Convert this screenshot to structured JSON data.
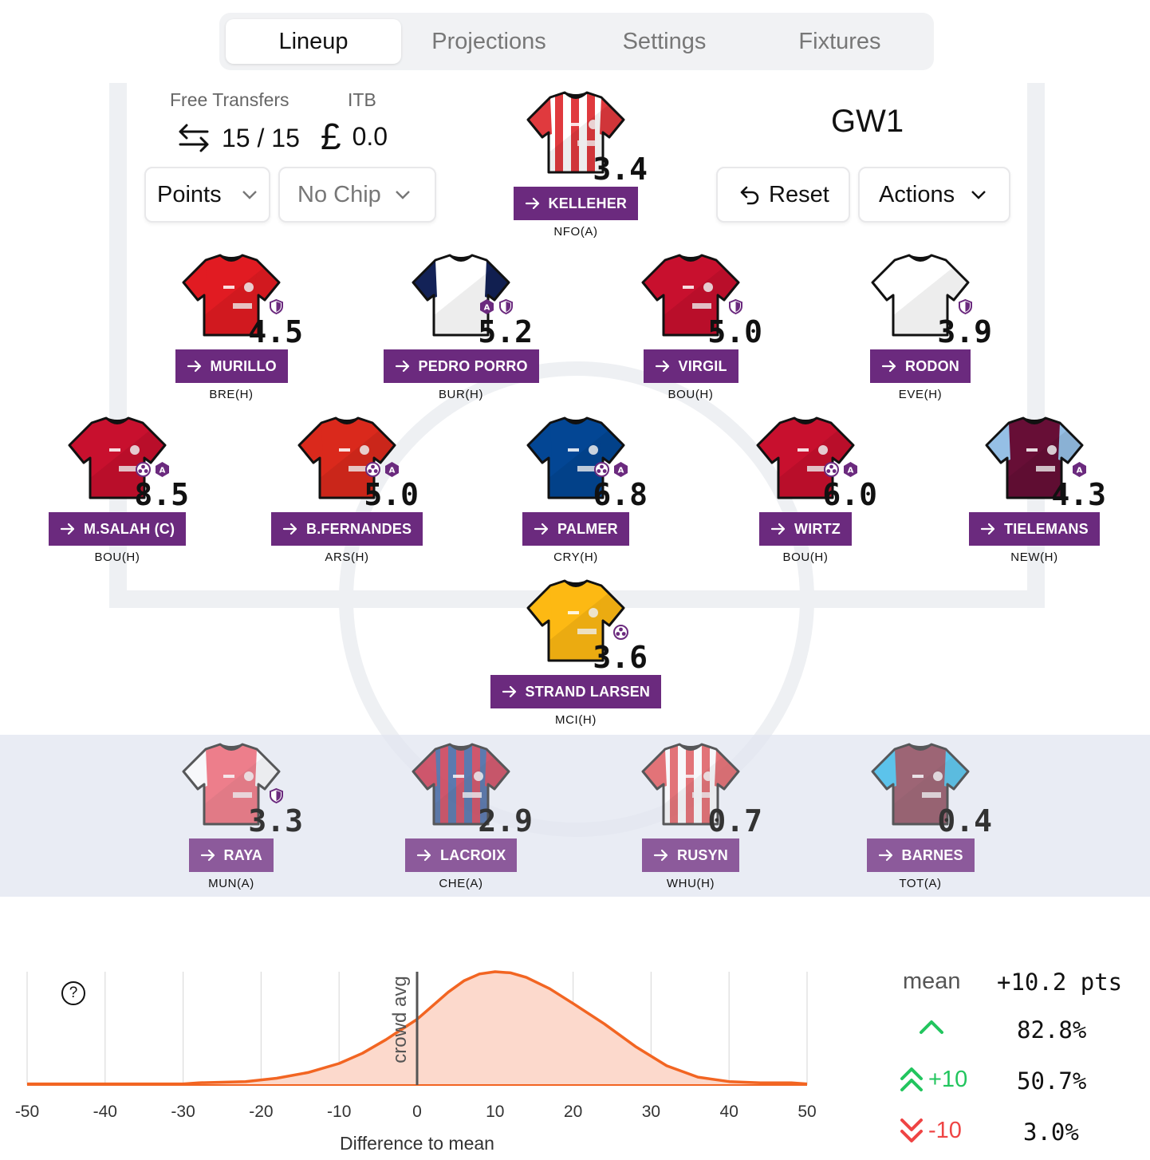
{
  "tabs": [
    {
      "label": "Lineup",
      "active": true
    },
    {
      "label": "Projections",
      "active": false
    },
    {
      "label": "Settings",
      "active": false
    },
    {
      "label": "Fixtures",
      "active": false
    }
  ],
  "header": {
    "free_transfers_label": "Free Transfers",
    "free_transfers_value": "15 / 15",
    "itb_label": "ITB",
    "itb_value": "0.0",
    "currency_symbol": "£",
    "gameweek": "GW1",
    "points_select": "Points",
    "chip_select": "No Chip",
    "reset_label": "Reset",
    "actions_label": "Actions"
  },
  "starters": [
    {
      "name": "KELLEHER",
      "fixture": "NFO(A)",
      "score": "3.4",
      "badges": [],
      "kit": {
        "type": "stripes",
        "base": "#ffffff",
        "stripe": "#e03a3e",
        "collar": "#ffffff"
      }
    },
    {
      "name": "MURILLO",
      "fixture": "BRE(H)",
      "score": "4.5",
      "badges": [
        "shield"
      ],
      "kit": {
        "type": "plain",
        "base": "#e11b22",
        "sleeve": "#e11b22",
        "collar": "#ffffff"
      }
    },
    {
      "name": "PEDRO PORRO",
      "fixture": "BUR(H)",
      "score": "5.2",
      "badges": [
        "assist",
        "shield"
      ],
      "kit": {
        "type": "plain",
        "base": "#ffffff",
        "sleeve": "#132257",
        "collar": "#132257"
      }
    },
    {
      "name": "VIRGIL",
      "fixture": "BOU(H)",
      "score": "5.0",
      "badges": [
        "shield"
      ],
      "kit": {
        "type": "plain",
        "base": "#c8102e",
        "sleeve": "#c8102e",
        "collar": "#f6b332"
      }
    },
    {
      "name": "RODON",
      "fixture": "EVE(H)",
      "score": "3.9",
      "badges": [
        "shield"
      ],
      "kit": {
        "type": "plain",
        "base": "#ffffff",
        "sleeve": "#ffffff",
        "collar": "#1d428a"
      }
    },
    {
      "name": "M.SALAH  (C)",
      "fixture": "BOU(H)",
      "score": "8.5",
      "badges": [
        "ball",
        "assist"
      ],
      "kit": {
        "type": "plain",
        "base": "#c8102e",
        "sleeve": "#c8102e",
        "collar": "#f6b332"
      }
    },
    {
      "name": "B.FERNANDES",
      "fixture": "ARS(H)",
      "score": "5.0",
      "badges": [
        "ball",
        "assist"
      ],
      "kit": {
        "type": "plain",
        "base": "#da291c",
        "sleeve": "#da291c",
        "collar": "#ffffff"
      }
    },
    {
      "name": "PALMER",
      "fixture": "CRY(H)",
      "score": "6.8",
      "badges": [
        "ball",
        "assist"
      ],
      "kit": {
        "type": "plain",
        "base": "#034694",
        "sleeve": "#034694",
        "collar": "#6cabdd"
      }
    },
    {
      "name": "WIRTZ",
      "fixture": "BOU(H)",
      "score": "6.0",
      "badges": [
        "ball",
        "assist"
      ],
      "kit": {
        "type": "plain",
        "base": "#c8102e",
        "sleeve": "#c8102e",
        "collar": "#f6b332"
      }
    },
    {
      "name": "TIELEMANS",
      "fixture": "NEW(H)",
      "score": "4.3",
      "badges": [
        "assist"
      ],
      "kit": {
        "type": "plain",
        "base": "#670e36",
        "sleeve": "#95bfe5",
        "collar": "#95bfe5"
      }
    },
    {
      "name": "STRAND LARSEN",
      "fixture": "MCI(H)",
      "score": "3.6",
      "badges": [
        "ball"
      ],
      "kit": {
        "type": "plain",
        "base": "#fdb913",
        "sleeve": "#fdb913",
        "collar": "#231f20"
      }
    }
  ],
  "bench": [
    {
      "name": "RAYA",
      "fixture": "MUN(A)",
      "score": "3.3",
      "badges": [
        "shield"
      ],
      "kit": {
        "type": "plain",
        "base": "#ef4b5a",
        "sleeve": "#ffffff",
        "collar": "#063672"
      }
    },
    {
      "name": "LACROIX",
      "fixture": "CHE(A)",
      "score": "2.9",
      "badges": [],
      "kit": {
        "type": "stripes",
        "base": "#1b458f",
        "stripe": "#c4122e",
        "collar": "#c4122e"
      }
    },
    {
      "name": "RUSYN",
      "fixture": "WHU(H)",
      "score": "0.7",
      "badges": [],
      "kit": {
        "type": "stripes",
        "base": "#ffffff",
        "stripe": "#e03a3e",
        "collar": "#ffffff"
      }
    },
    {
      "name": "BARNES",
      "fixture": "TOT(A)",
      "score": "0.4",
      "badges": [],
      "kit": {
        "type": "plain",
        "base": "#7a263a",
        "sleeve": "#1bb1e7",
        "collar": "#1bb1e7"
      }
    }
  ],
  "stats": {
    "mean_label": "mean",
    "mean_value": "+10.2 pts",
    "up_value": "82.8%",
    "plus10_label": "+10",
    "plus10_value": "50.7%",
    "minus10_label": "-10",
    "minus10_value": "3.0%",
    "up_color": "#22c55e",
    "down_color": "#ef4444"
  },
  "chart_data": {
    "type": "area",
    "xlabel": "Difference to mean",
    "xlim": [
      -50,
      50
    ],
    "xticks": [
      "-50",
      "-40",
      "-30",
      "-20",
      "-10",
      "0",
      "10",
      "20",
      "30",
      "40",
      "50"
    ],
    "reference_line": {
      "x": 0,
      "label": "crowd avg"
    },
    "line_color": "#f26522",
    "fill_color": "#fcd9cc",
    "x": [
      -50,
      -40,
      -30,
      -28,
      -22,
      -18,
      -14,
      -10,
      -7,
      -4,
      -2,
      0,
      2,
      4,
      6,
      8,
      10,
      12,
      14,
      17,
      20,
      24,
      28,
      32,
      36,
      40,
      44,
      48,
      50
    ],
    "y": [
      0.01,
      0.01,
      0.01,
      0.02,
      0.03,
      0.06,
      0.11,
      0.19,
      0.28,
      0.4,
      0.49,
      0.58,
      0.7,
      0.82,
      0.92,
      0.98,
      1.0,
      0.99,
      0.95,
      0.85,
      0.72,
      0.54,
      0.34,
      0.17,
      0.07,
      0.03,
      0.02,
      0.02,
      0.01
    ]
  }
}
